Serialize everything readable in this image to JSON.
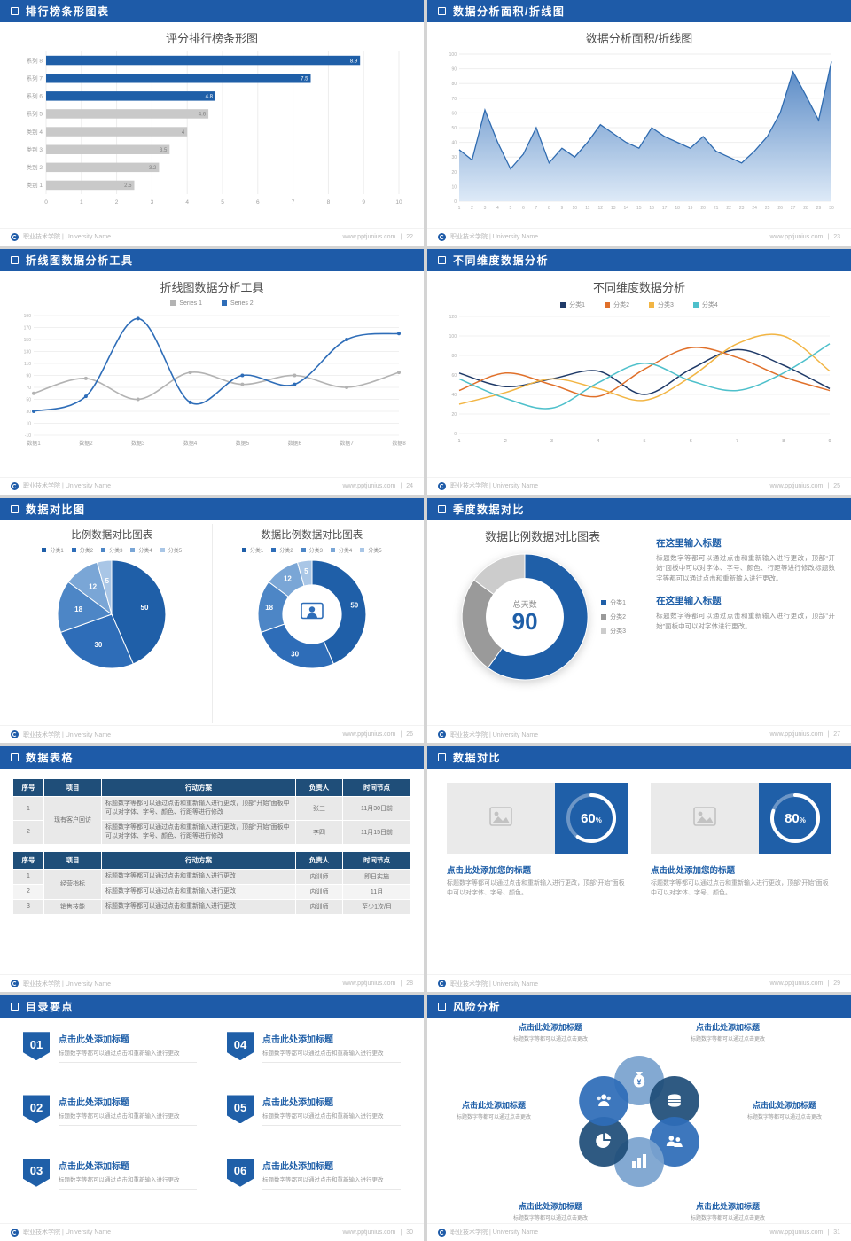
{
  "footer": {
    "school": "职业技术学院 | University Name",
    "site": "www.pptjunius.com",
    "divider": "|"
  },
  "slides": {
    "s1": {
      "header": "排行榜条形图表",
      "page": "22",
      "chart": {
        "type": "hbar",
        "title": "评分排行榜条形图",
        "categories": [
          "系列 8",
          "系列 7",
          "系列 6",
          "系列 5",
          "类别 4",
          "类别 3",
          "类别 2",
          "类别 1"
        ],
        "values": [
          8.9,
          7.5,
          4.8,
          4.6,
          4,
          3.5,
          3.2,
          2.5
        ],
        "highlight_count": 3,
        "accent": "#1f5fa8",
        "muted": "#c9c9c9",
        "xlim": [
          0,
          10
        ],
        "xticks": [
          0,
          1,
          2,
          3,
          4,
          5,
          6,
          7,
          8,
          9,
          10
        ]
      }
    },
    "s2": {
      "header": "数据分析面积/折线图",
      "page": "23",
      "chart": {
        "type": "area",
        "title": "数据分析面积/折线图",
        "x": [
          1,
          2,
          3,
          4,
          5,
          6,
          7,
          8,
          9,
          10,
          11,
          12,
          13,
          14,
          15,
          16,
          17,
          18,
          19,
          20,
          21,
          22,
          23,
          24,
          25,
          26,
          27,
          28,
          29,
          30
        ],
        "values": [
          35,
          28,
          62,
          40,
          22,
          32,
          50,
          26,
          36,
          30,
          40,
          52,
          46,
          40,
          36,
          50,
          44,
          40,
          36,
          44,
          34,
          30,
          26,
          34,
          44,
          60,
          88,
          72,
          55,
          95
        ],
        "ylim": [
          0,
          100
        ],
        "yticks": [
          0,
          10,
          20,
          30,
          40,
          50,
          60,
          70,
          80,
          90,
          100
        ],
        "line_color": "#2f6bb0",
        "fill_from": "#4a7fc0",
        "fill_to": "#dce9f7"
      }
    },
    "s3": {
      "header": "折线图数据分析工具",
      "page": "24",
      "chart": {
        "type": "line",
        "title": "折线图数据分析工具",
        "categories": [
          "数据1",
          "数据2",
          "数据3",
          "数据4",
          "数据5",
          "数据6",
          "数据7",
          "数据8"
        ],
        "yticks": [
          190,
          170,
          150,
          130,
          110,
          90,
          70,
          50,
          30,
          10,
          -10
        ],
        "series": [
          {
            "name": "Series 1",
            "color": "#b3b3b3",
            "values": [
              60,
              85,
              50,
              95,
              75,
              90,
              70,
              95
            ]
          },
          {
            "name": "Series 2",
            "color": "#2e6db8",
            "values": [
              30,
              55,
              185,
              45,
              90,
              75,
              150,
              160
            ]
          }
        ]
      }
    },
    "s4": {
      "header": "不同维度数据分析",
      "page": "25",
      "chart": {
        "type": "multiline",
        "title": "不同维度数据分析",
        "x": [
          1,
          2,
          3,
          4,
          5,
          6,
          7,
          8,
          9
        ],
        "ylim": [
          0,
          120
        ],
        "yticks": [
          0,
          20,
          40,
          60,
          80,
          100,
          120
        ],
        "series": [
          {
            "name": "分类1",
            "color": "#1f3a68",
            "values": [
              62,
              48,
              56,
              64,
              40,
              66,
              86,
              70,
              46
            ]
          },
          {
            "name": "分类2",
            "color": "#e0702a",
            "values": [
              44,
              62,
              50,
              38,
              66,
              88,
              78,
              58,
              44
            ]
          },
          {
            "name": "分类3",
            "color": "#f2b544",
            "values": [
              30,
              42,
              56,
              46,
              34,
              58,
              92,
              100,
              64
            ]
          },
          {
            "name": "分类4",
            "color": "#4ec0cb",
            "values": [
              56,
              36,
              26,
              52,
              72,
              54,
              44,
              62,
              92
            ]
          }
        ]
      }
    },
    "s5": {
      "header": "数据对比图",
      "page": "26",
      "left": {
        "title": "比例数据对比图表",
        "legend": [
          "分类1",
          "分类2",
          "分类3",
          "分类4",
          "分类5"
        ],
        "chart": {
          "type": "pie",
          "values": [
            50,
            30,
            18,
            12,
            5
          ],
          "colors": [
            "#1f5fa8",
            "#2e6db8",
            "#4d86c6",
            "#7aa6d6",
            "#a9c6e6"
          ],
          "show_labels": true
        }
      },
      "right": {
        "title": "数据比例数据对比图表",
        "legend": [
          "分类1",
          "分类2",
          "分类3",
          "分类4",
          "分类5"
        ],
        "chart": {
          "type": "donut",
          "values": [
            50,
            30,
            18,
            12,
            5
          ],
          "colors": [
            "#1f5fa8",
            "#2e6db8",
            "#4d86c6",
            "#7aa6d6",
            "#a9c6e6"
          ],
          "show_labels": true,
          "hole": 0.55
        }
      }
    },
    "s6": {
      "header": "季度数据对比",
      "page": "27",
      "title": "数据比例数据对比图表",
      "center_label": "总天数",
      "center_value": "90",
      "legend": [
        "分类1",
        "分类2",
        "分类3"
      ],
      "legend_colors": [
        "#1f5fa8",
        "#9a9a9a",
        "#cccccc"
      ],
      "donut": {
        "type": "donut",
        "values": [
          60,
          25,
          15
        ],
        "colors": [
          "#1f5fa8",
          "#9a9a9a",
          "#cccccc"
        ],
        "show_labels": false,
        "hole": 0.62
      },
      "blocks": [
        {
          "title": "在这里输入标题",
          "body": "标题数字等都可以通过点击和重新输入进行更改，顶部“开始”面板中可以对字体、字号、颜色、行距等进行修改标题数字等都可以通过点击和重新输入进行更改。"
        },
        {
          "title": "在这里输入标题",
          "body": "标题数字等都可以通过点击和重新输入进行更改，顶部“开始”面板中可以对字体进行更改。"
        }
      ]
    },
    "s7": {
      "header": "数据表格",
      "page": "28",
      "table1": {
        "headers": [
          "序号",
          "项目",
          "行动方案",
          "负责人",
          "时间节点"
        ],
        "project": "现有客户回访",
        "rows": [
          {
            "no": "1",
            "plan": "标题数字等都可以通过点击和重新输入进行更改，顶部“开始”面板中可以对字体、字号、颜色、行距等进行修改",
            "owner": "张三",
            "time": "11月30日前"
          },
          {
            "no": "2",
            "plan": "标题数字等都可以通过点击和重新输入进行更改，顶部“开始”面板中可以对字体、字号、颜色、行距等进行修改",
            "owner": "李四",
            "time": "11月15日前"
          }
        ]
      },
      "table2": {
        "headers": [
          "序号",
          "项目",
          "行动方案",
          "负责人",
          "时间节点"
        ],
        "project1": "经营指标",
        "project2": "销售技能",
        "rows": [
          {
            "no": "1",
            "plan": "标题数字等都可以通过点击和重新输入进行更改",
            "owner": "内训师",
            "time": "即日实施"
          },
          {
            "no": "2",
            "plan": "标题数字等都可以通过点击和重新输入进行更改",
            "owner": "内训师",
            "time": "11月"
          },
          {
            "no": "3",
            "plan": "标题数字等都可以通过点击和重新输入进行更改",
            "owner": "内训师",
            "time": "至少1次/月"
          }
        ]
      }
    },
    "s8": {
      "header": "数据对比",
      "page": "29",
      "cards": [
        {
          "ring": {
            "type": "progress",
            "percent": 60
          },
          "title": "点击此处添加您的标题",
          "body": "标题数字等都可以通过点击和重新输入进行更改，顶部“开始”面板中可以对字体、字号、颜色。"
        },
        {
          "ring": {
            "type": "progress",
            "percent": 80
          },
          "title": "点击此处添加您的标题",
          "body": "标题数字等都可以通过点击和重新输入进行更改，顶部“开始”面板中可以对字体、字号、颜色。"
        }
      ]
    },
    "s9": {
      "header": "目录要点",
      "page": "30",
      "items": [
        {
          "num": "01",
          "title": "点击此处添加标题",
          "desc": "标题数字等都可以通过点击和重新输入进行更改"
        },
        {
          "num": "02",
          "title": "点击此处添加标题",
          "desc": "标题数字等都可以通过点击和重新输入进行更改"
        },
        {
          "num": "03",
          "title": "点击此处添加标题",
          "desc": "标题数字等都可以通过点击和重新输入进行更改"
        },
        {
          "num": "04",
          "title": "点击此处添加标题",
          "desc": "标题数字等都可以通过点击和重新输入进行更改"
        },
        {
          "num": "05",
          "title": "点击此处添加标题",
          "desc": "标题数字等都可以通过点击和重新输入进行更改"
        },
        {
          "num": "06",
          "title": "点击此处添加标题",
          "desc": "标题数字等都可以通过点击和重新输入进行更改"
        }
      ]
    },
    "s10": {
      "header": "风险分析",
      "page": "31",
      "labels": [
        {
          "title": "点击此处添加标题",
          "desc": "标题数字等都可以通过点击更改"
        },
        {
          "title": "点击此处添加标题",
          "desc": "标题数字等都可以通过点击更改"
        },
        {
          "title": "点击此处添加标题",
          "desc": "标题数字等都可以通过点击更改"
        },
        {
          "title": "点击此处添加标题",
          "desc": "标题数字等都可以通过点击更改"
        },
        {
          "title": "点击此处添加标题",
          "desc": "标题数字等都可以通过点击更改"
        },
        {
          "title": "点击此处添加标题",
          "desc": "标题数字等都可以通过点击更改"
        }
      ],
      "pinwheel": {
        "type": "pinwheel",
        "petals": [
          {
            "icon": "money-bag-icon",
            "color": "#7aa3cf"
          },
          {
            "icon": "coins-icon",
            "color": "#1f4e79"
          },
          {
            "icon": "people-icon",
            "color": "#2e6db8"
          },
          {
            "icon": "bar-chart-icon",
            "color": "#7aa3cf"
          },
          {
            "icon": "pie-chart-icon",
            "color": "#1f4e79"
          },
          {
            "icon": "user-group-icon",
            "color": "#2e6db8"
          }
        ]
      }
    }
  }
}
